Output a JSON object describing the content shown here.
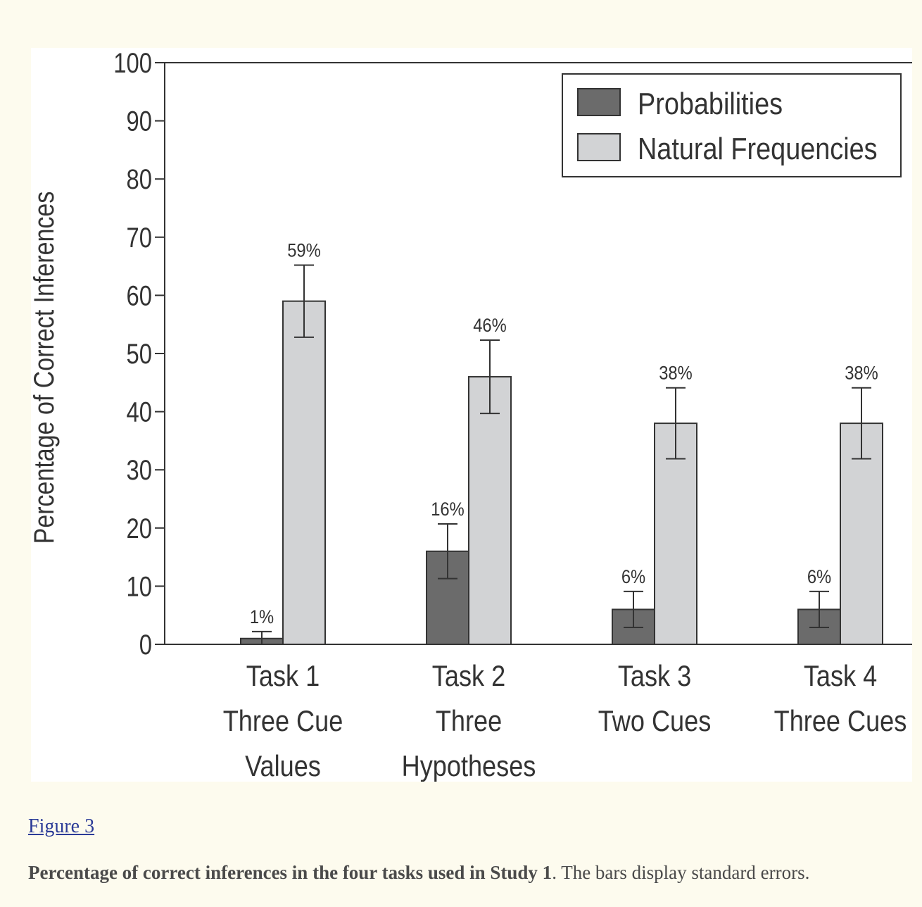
{
  "chart_data": {
    "type": "bar",
    "ylabel": "Percentage of Correct Inferences",
    "ylim": [
      0,
      100
    ],
    "yticks": [
      0,
      10,
      20,
      30,
      40,
      50,
      60,
      70,
      80,
      90,
      100
    ],
    "legend_position": "top-right",
    "categories": [
      [
        "Task 1",
        "Three Cue",
        "Values"
      ],
      [
        "Task 2",
        "Three",
        "Hypotheses"
      ],
      [
        "Task 3",
        "Two Cues"
      ],
      [
        "Task 4",
        "Three Cues"
      ]
    ],
    "series": [
      {
        "name": "Probabilities",
        "color": "#6b6b6b",
        "values": [
          1,
          16,
          6,
          6
        ],
        "labels": [
          "1%",
          "16%",
          "6%",
          "6%"
        ],
        "error": [
          1.2,
          4.7,
          3.1,
          3.1
        ]
      },
      {
        "name": "Natural Frequencies",
        "color": "#d2d3d5",
        "values": [
          59,
          46,
          38,
          38
        ],
        "labels": [
          "59%",
          "46%",
          "38%",
          "38%"
        ],
        "error": [
          6.2,
          6.3,
          6.1,
          6.1
        ]
      }
    ]
  },
  "figure_link": "Figure 3",
  "caption": {
    "bold": "Percentage of correct inferences in the four tasks used in Study 1",
    "rest": ". The bars display standard errors."
  }
}
